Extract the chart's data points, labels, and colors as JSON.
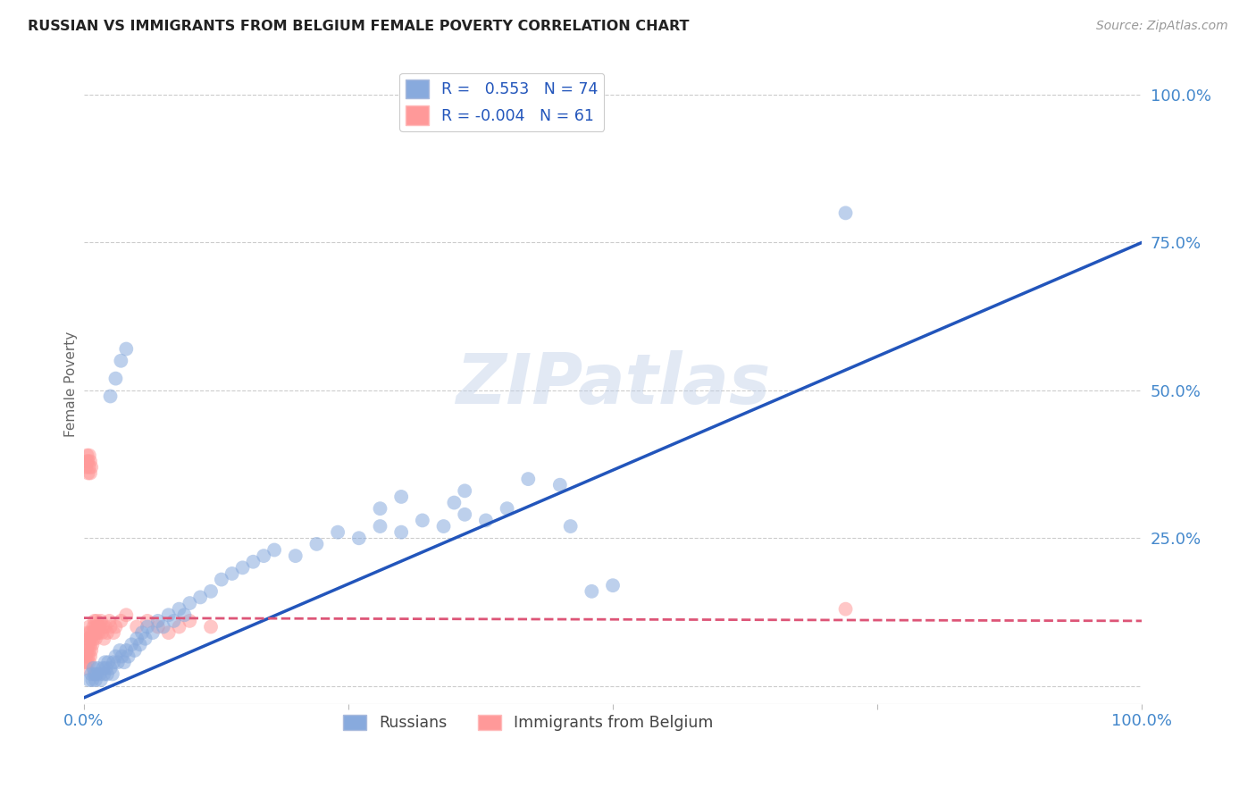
{
  "title": "RUSSIAN VS IMMIGRANTS FROM BELGIUM FEMALE POVERTY CORRELATION CHART",
  "source": "Source: ZipAtlas.com",
  "ylabel": "Female Poverty",
  "blue_color": "#88AADD",
  "pink_color": "#FF9999",
  "blue_line_color": "#2255BB",
  "pink_line_color": "#DD5577",
  "legend_blue_label": "R =   0.553   N = 74",
  "legend_pink_label": "R = -0.004   N = 61",
  "legend_russians": "Russians",
  "legend_belgium": "Immigrants from Belgium",
  "watermark_text": "ZIPatlas",
  "background_color": "#FFFFFF",
  "blue_x": [
    0.005,
    0.007,
    0.008,
    0.009,
    0.01,
    0.011,
    0.012,
    0.013,
    0.015,
    0.016,
    0.018,
    0.019,
    0.02,
    0.021,
    0.022,
    0.023,
    0.025,
    0.027,
    0.028,
    0.03,
    0.032,
    0.034,
    0.036,
    0.038,
    0.04,
    0.042,
    0.045,
    0.048,
    0.05,
    0.053,
    0.055,
    0.058,
    0.06,
    0.065,
    0.07,
    0.075,
    0.08,
    0.085,
    0.09,
    0.095,
    0.1,
    0.11,
    0.12,
    0.13,
    0.14,
    0.15,
    0.16,
    0.17,
    0.18,
    0.2,
    0.22,
    0.24,
    0.26,
    0.28,
    0.3,
    0.32,
    0.34,
    0.36,
    0.38,
    0.4,
    0.025,
    0.03,
    0.035,
    0.04,
    0.28,
    0.3,
    0.35,
    0.36,
    0.42,
    0.45,
    0.46,
    0.48,
    0.5,
    0.72
  ],
  "blue_y": [
    0.01,
    0.02,
    0.01,
    0.03,
    0.02,
    0.01,
    0.02,
    0.03,
    0.02,
    0.01,
    0.03,
    0.02,
    0.04,
    0.03,
    0.02,
    0.04,
    0.03,
    0.02,
    0.04,
    0.05,
    0.04,
    0.06,
    0.05,
    0.04,
    0.06,
    0.05,
    0.07,
    0.06,
    0.08,
    0.07,
    0.09,
    0.08,
    0.1,
    0.09,
    0.11,
    0.1,
    0.12,
    0.11,
    0.13,
    0.12,
    0.14,
    0.15,
    0.16,
    0.18,
    0.19,
    0.2,
    0.21,
    0.22,
    0.23,
    0.22,
    0.24,
    0.26,
    0.25,
    0.27,
    0.26,
    0.28,
    0.27,
    0.29,
    0.28,
    0.3,
    0.49,
    0.52,
    0.55,
    0.57,
    0.3,
    0.32,
    0.31,
    0.33,
    0.35,
    0.34,
    0.27,
    0.16,
    0.17,
    0.8
  ],
  "pink_x": [
    0.001,
    0.002,
    0.002,
    0.003,
    0.003,
    0.003,
    0.004,
    0.004,
    0.004,
    0.005,
    0.005,
    0.005,
    0.005,
    0.006,
    0.006,
    0.006,
    0.007,
    0.007,
    0.008,
    0.008,
    0.009,
    0.009,
    0.01,
    0.01,
    0.011,
    0.011,
    0.012,
    0.012,
    0.013,
    0.014,
    0.015,
    0.016,
    0.017,
    0.018,
    0.019,
    0.02,
    0.022,
    0.024,
    0.025,
    0.028,
    0.03,
    0.035,
    0.04,
    0.05,
    0.06,
    0.07,
    0.08,
    0.09,
    0.1,
    0.12,
    0.002,
    0.003,
    0.003,
    0.004,
    0.004,
    0.005,
    0.005,
    0.006,
    0.006,
    0.007,
    0.72
  ],
  "pink_y": [
    0.04,
    0.05,
    0.03,
    0.04,
    0.06,
    0.08,
    0.05,
    0.07,
    0.09,
    0.04,
    0.06,
    0.08,
    0.1,
    0.05,
    0.07,
    0.09,
    0.06,
    0.08,
    0.07,
    0.09,
    0.08,
    0.1,
    0.09,
    0.11,
    0.08,
    0.1,
    0.09,
    0.11,
    0.1,
    0.09,
    0.1,
    0.11,
    0.09,
    0.1,
    0.08,
    0.1,
    0.09,
    0.11,
    0.1,
    0.09,
    0.1,
    0.11,
    0.12,
    0.1,
    0.11,
    0.1,
    0.09,
    0.1,
    0.11,
    0.1,
    0.37,
    0.38,
    0.39,
    0.36,
    0.38,
    0.37,
    0.39,
    0.36,
    0.38,
    0.37,
    0.13
  ],
  "blue_line_x": [
    0.0,
    1.0
  ],
  "blue_line_y": [
    -0.02,
    0.75
  ],
  "pink_line_x": [
    0.0,
    1.0
  ],
  "pink_line_y": [
    0.115,
    0.11
  ],
  "xlim": [
    0.0,
    1.0
  ],
  "ylim": [
    -0.03,
    1.05
  ],
  "yticks": [
    0.0,
    0.25,
    0.5,
    0.75,
    1.0
  ],
  "ytick_labels": [
    "",
    "25.0%",
    "50.0%",
    "75.0%",
    "100.0%"
  ],
  "xtick_left_label": "0.0%",
  "xtick_right_label": "100.0%"
}
